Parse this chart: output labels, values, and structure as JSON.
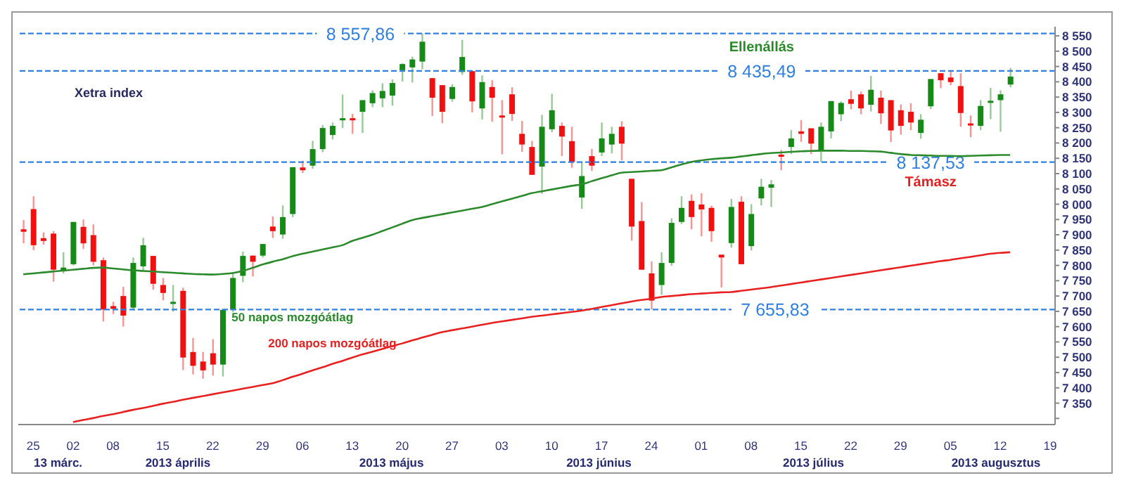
{
  "chart_data": {
    "type": "candlestick",
    "title": "Xetra index",
    "categories": [
      null,
      "25",
      null,
      null,
      null,
      "02",
      null,
      null,
      null,
      "08",
      null,
      null,
      null,
      null,
      "15",
      null,
      null,
      null,
      null,
      "22",
      null,
      null,
      null,
      null,
      "29",
      null,
      null,
      null,
      "06",
      null,
      null,
      null,
      null,
      "13",
      null,
      null,
      null,
      null,
      "20",
      null,
      null,
      null,
      null,
      "27",
      null,
      null,
      null,
      null,
      "03",
      null,
      null,
      null,
      null,
      "10",
      null,
      null,
      null,
      null,
      "17",
      null,
      null,
      null,
      null,
      "24",
      null,
      null,
      null,
      null,
      "01",
      null,
      null,
      null,
      null,
      "08",
      null,
      null,
      null,
      null,
      "15",
      null,
      null,
      null,
      null,
      "22",
      null,
      null,
      null,
      null,
      "29",
      null,
      null,
      null,
      null,
      "05",
      null,
      null,
      null,
      null,
      "12",
      null,
      null,
      null,
      null,
      "19"
    ],
    "ohlc": [
      [
        7918,
        7948,
        7872,
        7910
      ],
      [
        7984,
        8026,
        7850,
        7866
      ],
      [
        7889,
        7908,
        7868,
        7880
      ],
      [
        7904,
        7912,
        7747,
        7786
      ],
      [
        7784,
        7843,
        7774,
        7793
      ],
      [
        7804,
        7942,
        7800,
        7942
      ],
      [
        7926,
        7950,
        7854,
        7872
      ],
      [
        7899,
        7934,
        7800,
        7812
      ],
      [
        7817,
        7826,
        7617,
        7656
      ],
      [
        7667,
        7681,
        7641,
        7658
      ],
      [
        7700,
        7730,
        7600,
        7636
      ],
      [
        7662,
        7826,
        7653,
        7808
      ],
      [
        7797,
        7890,
        7782,
        7866
      ],
      [
        7831,
        7831,
        7721,
        7740
      ],
      [
        7736,
        7759,
        7686,
        7710
      ],
      [
        7676,
        7736,
        7649,
        7681
      ],
      [
        7717,
        7727,
        7458,
        7499
      ],
      [
        7517,
        7563,
        7444,
        7472
      ],
      [
        7486,
        7517,
        7430,
        7457
      ],
      [
        7513,
        7559,
        7440,
        7476
      ],
      [
        7476,
        7655,
        7437,
        7655
      ],
      [
        7655,
        7777,
        7648,
        7759
      ],
      [
        7766,
        7845,
        7745,
        7831
      ],
      [
        7832,
        7832,
        7764,
        7812
      ],
      [
        7832,
        7870,
        7826,
        7870
      ],
      [
        7927,
        7960,
        7890,
        7912
      ],
      [
        7901,
        7996,
        7887,
        7958
      ],
      [
        7968,
        8121,
        7958,
        8121
      ],
      [
        8120,
        8142,
        8102,
        8111
      ],
      [
        8126,
        8207,
        8116,
        8180
      ],
      [
        8180,
        8258,
        8170,
        8249
      ],
      [
        8226,
        8267,
        8212,
        8256
      ],
      [
        8276,
        8358,
        8249,
        8281
      ],
      [
        8281,
        8295,
        8230,
        8276
      ],
      [
        8302,
        8340,
        8233,
        8340
      ],
      [
        8330,
        8372,
        8317,
        8363
      ],
      [
        8346,
        8395,
        8317,
        8370
      ],
      [
        8355,
        8408,
        8322,
        8396
      ],
      [
        8438,
        8460,
        8401,
        8458
      ],
      [
        8447,
        8482,
        8398,
        8473
      ],
      [
        8466,
        8557.86,
        8441,
        8531
      ],
      [
        8412,
        8412,
        8288,
        8348
      ],
      [
        8389,
        8389,
        8265,
        8302
      ],
      [
        8344,
        8392,
        8335,
        8383
      ],
      [
        8432,
        8537,
        8423,
        8481
      ],
      [
        8435,
        8435,
        8300,
        8336
      ],
      [
        8313,
        8421,
        8277,
        8399
      ],
      [
        8383,
        8405,
        8270,
        8348
      ],
      [
        8290,
        8340,
        8163,
        8284
      ],
      [
        8359,
        8382,
        8272,
        8295
      ],
      [
        8230,
        8272,
        8171,
        8195
      ],
      [
        8187,
        8207,
        8096,
        8096
      ],
      [
        8123,
        8292,
        8034,
        8253
      ],
      [
        8245,
        8361,
        8235,
        8307
      ],
      [
        8256,
        8267,
        8157,
        8221
      ],
      [
        8206,
        8253,
        8119,
        8138
      ],
      [
        8022,
        8138,
        7985,
        8092
      ],
      [
        8157,
        8180,
        8109,
        8126
      ],
      [
        8169,
        8267,
        8157,
        8215
      ],
      [
        8195,
        8253,
        8166,
        8230
      ],
      [
        8253,
        8271,
        8144,
        8198
      ],
      [
        8083,
        8083,
        7881,
        7927
      ],
      [
        7945,
        8007,
        7786,
        7786
      ],
      [
        7774,
        7813,
        7655.83,
        7685
      ],
      [
        7736,
        7843,
        7704,
        7808
      ],
      [
        7808,
        7954,
        7799,
        7939
      ],
      [
        7942,
        8026,
        7935,
        7988
      ],
      [
        8011,
        8032,
        7918,
        7958
      ],
      [
        7999,
        8036,
        7895,
        7983
      ],
      [
        7988,
        7995,
        7877,
        7912
      ],
      [
        7835,
        7835,
        7728,
        7826
      ],
      [
        7873,
        8017,
        7858,
        7991
      ],
      [
        8008,
        8026,
        7804,
        7804
      ],
      [
        7863,
        8000,
        7849,
        7968
      ],
      [
        8019,
        8083,
        7996,
        8057
      ],
      [
        8054,
        8079,
        7991,
        8065
      ],
      [
        8162,
        8177,
        8111,
        8157
      ],
      [
        8187,
        8242,
        8164,
        8215
      ],
      [
        8238,
        8275,
        8204,
        8230
      ],
      [
        8248,
        8248,
        8164,
        8198
      ],
      [
        8175,
        8267,
        8137.53,
        8253
      ],
      [
        8238,
        8337,
        8215,
        8337
      ],
      [
        8294,
        8336,
        8271,
        8331
      ],
      [
        8343,
        8371,
        8310,
        8328
      ],
      [
        8359,
        8368,
        8294,
        8313
      ],
      [
        8325,
        8419,
        8303,
        8374
      ],
      [
        8348,
        8371,
        8262,
        8297
      ],
      [
        8340,
        8340,
        8203,
        8241
      ],
      [
        8307,
        8326,
        8227,
        8256
      ],
      [
        8302,
        8330,
        8242,
        8267
      ],
      [
        8233,
        8294,
        8214,
        8276
      ],
      [
        8320,
        8409,
        8311,
        8409
      ],
      [
        8428,
        8428,
        8379,
        8405
      ],
      [
        8414,
        8435,
        8389,
        8399
      ],
      [
        8386,
        8428,
        8253,
        8298
      ],
      [
        8264,
        8290,
        8219,
        8259
      ],
      [
        8256,
        8340,
        8242,
        8321
      ],
      [
        8333,
        8380,
        8278,
        8338
      ],
      [
        8340,
        8372,
        8237,
        8359
      ],
      [
        8391,
        8445,
        8382,
        8417
      ],
      null,
      null,
      null,
      null
    ],
    "colors": [
      "#f01010",
      "#f01010",
      "#f01010",
      "#f01010",
      "#168a16",
      "#168a16",
      "#f01010",
      "#f01010",
      "#f01010",
      "#f01010",
      "#f01010",
      "#168a16",
      "#168a16",
      "#f01010",
      "#f01010",
      "#168a16",
      "#f01010",
      "#f01010",
      "#f01010",
      "#f01010",
      "#168a16",
      "#168a16",
      "#168a16",
      "#f01010",
      "#168a16",
      "#f01010",
      "#168a16",
      "#168a16",
      "#f01010",
      "#168a16",
      "#168a16",
      "#168a16",
      "#168a16",
      "#f01010",
      "#168a16",
      "#168a16",
      "#168a16",
      "#168a16",
      "#168a16",
      "#168a16",
      "#168a16",
      "#f01010",
      "#f01010",
      "#168a16",
      "#168a16",
      "#f01010",
      "#168a16",
      "#f01010",
      "#f01010",
      "#f01010",
      "#f01010",
      "#f01010",
      "#168a16",
      "#168a16",
      "#f01010",
      "#f01010",
      "#168a16",
      "#f01010",
      "#168a16",
      "#168a16",
      "#f01010",
      "#f01010",
      "#f01010",
      "#f01010",
      "#168a16",
      "#168a16",
      "#168a16",
      "#f01010",
      "#f01010",
      "#f01010",
      "#f01010",
      "#168a16",
      "#f01010",
      "#168a16",
      "#168a16",
      "#168a16",
      "#f01010",
      "#168a16",
      "#f01010",
      "#f01010",
      "#168a16",
      "#168a16",
      "#168a16",
      "#f01010",
      "#f01010",
      "#168a16",
      "#f01010",
      "#f01010",
      "#f01010",
      "#f01010",
      "#168a16",
      "#168a16",
      "#f01010",
      "#f01010",
      "#f01010",
      "#f01010",
      "#168a16",
      "#168a16",
      "#168a16",
      "#168a16",
      null,
      null,
      null,
      null
    ],
    "series": [
      {
        "type": "line",
        "name": "50 napos mozgóátlag",
        "color": "#2b8a2b",
        "values": [
          7771,
          7774,
          7777,
          7780,
          7783,
          7786,
          7789,
          7792,
          7793,
          7790,
          7787,
          7784,
          7782,
          7780,
          7778,
          7776,
          7774,
          7772,
          7771,
          7770,
          7772,
          7775,
          7782,
          7792,
          7803,
          7812,
          7820,
          7830,
          7838,
          7845,
          7852,
          7859,
          7866,
          7880,
          7890,
          7900,
          7912,
          7924,
          7936,
          7948,
          7955,
          7961,
          7967,
          7973,
          7979,
          7985,
          7991,
          8000,
          8009,
          8018,
          8027,
          8036,
          8042,
          8048,
          8054,
          8060,
          8065,
          8075,
          8085,
          8094,
          8103,
          8105,
          8107,
          8109,
          8111,
          8120,
          8130,
          8138,
          8143,
          8147,
          8150,
          8152,
          8156,
          8160,
          8164,
          8167,
          8169,
          8171,
          8173,
          8174,
          8175,
          8175,
          8175,
          8174,
          8174,
          8173,
          8172,
          8168,
          8164,
          8161,
          8160,
          8159,
          8158,
          8158,
          8157,
          8158,
          8159,
          8160,
          8161,
          8161,
          null,
          null,
          null,
          null
        ]
      },
      {
        "type": "line",
        "name": "200 napos mozgóátlag",
        "color": "#e82020",
        "values": [
          null,
          null,
          null,
          null,
          null,
          7288,
          7295,
          7301,
          7308,
          7314,
          7321,
          7328,
          7334,
          7341,
          7348,
          7354,
          7361,
          7367,
          7373,
          7379,
          7385,
          7391,
          7397,
          7403,
          7409,
          7415,
          7425,
          7436,
          7446,
          7457,
          7467,
          7478,
          7488,
          7499,
          7509,
          7518,
          7527,
          7536,
          7545,
          7555,
          7564,
          7573,
          7582,
          7588,
          7594,
          7600,
          7606,
          7612,
          7617,
          7622,
          7627,
          7632,
          7636,
          7640,
          7644,
          7648,
          7652,
          7658,
          7664,
          7670,
          7676,
          7682,
          7687,
          7691,
          7697,
          7700,
          7703,
          7706,
          7708,
          7710,
          7712,
          7713,
          7717,
          7721,
          7725,
          7729,
          7734,
          7739,
          7744,
          7749,
          7754,
          7759,
          7764,
          7769,
          7774,
          7779,
          7784,
          7789,
          7794,
          7799,
          7804,
          7809,
          7814,
          7818,
          7823,
          7828,
          7833,
          7838,
          7841,
          7843,
          null,
          null,
          null,
          null
        ]
      }
    ],
    "ylim": [
      7280,
      8580
    ],
    "yticks": [
      {
        "value": 7300,
        "label": null
      },
      {
        "value": 7350,
        "label": "7 350"
      },
      {
        "value": 7400,
        "label": "7 400"
      },
      {
        "value": 7450,
        "label": "7 450"
      },
      {
        "value": 7500,
        "label": "7 500"
      },
      {
        "value": 7550,
        "label": "7 550"
      },
      {
        "value": 7600,
        "label": "7 600"
      },
      {
        "value": 7650,
        "label": "7 650"
      },
      {
        "value": 7700,
        "label": "7 700"
      },
      {
        "value": 7750,
        "label": "7 750"
      },
      {
        "value": 7800,
        "label": "7 800"
      },
      {
        "value": 7850,
        "label": "7 850"
      },
      {
        "value": 7900,
        "label": "7 900"
      },
      {
        "value": 7950,
        "label": "7 950"
      },
      {
        "value": 8000,
        "label": "8 000"
      },
      {
        "value": 8050,
        "label": "8 050"
      },
      {
        "value": 8100,
        "label": "8 100"
      },
      {
        "value": 8150,
        "label": "8 150"
      },
      {
        "value": 8200,
        "label": "8 200"
      },
      {
        "value": 8250,
        "label": "8 250"
      },
      {
        "value": 8300,
        "label": "8 300"
      },
      {
        "value": 8350,
        "label": "8 350"
      },
      {
        "value": 8400,
        "label": "8 400"
      },
      {
        "value": 8450,
        "label": "8 450"
      },
      {
        "value": 8500,
        "label": "8 500"
      },
      {
        "value": 8550,
        "label": "8 550"
      }
    ],
    "ref_lines": [
      {
        "axis": "y",
        "value": 8557.86,
        "label": "8 557,86",
        "color": "#2f80e0",
        "line_style": "dashed"
      },
      {
        "axis": "y",
        "value": 8435.49,
        "label": "8 435,49",
        "color": "#2f80e0",
        "line_style": "dashed"
      },
      {
        "axis": "y",
        "value": 8137.53,
        "label": "8 137,53",
        "color": "#2f80e0",
        "line_style": "dashed"
      },
      {
        "axis": "y",
        "value": 7655.83,
        "label": "7 655,83",
        "color": "#2f80e0",
        "line_style": "dashed"
      }
    ],
    "annotations": [
      "13 márc.",
      "2013 április",
      "2013 május",
      "2013 június",
      "2013 július",
      "2013 augusztus",
      {
        "text": "Ellenállás",
        "y": 8435.49
      },
      {
        "text": "Támasz",
        "y": 8137.53
      }
    ]
  }
}
